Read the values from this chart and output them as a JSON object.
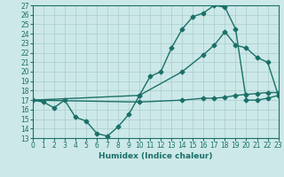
{
  "xlabel": "Humidex (Indice chaleur)",
  "xlim": [
    0,
    23
  ],
  "ylim": [
    13,
    27
  ],
  "xticks": [
    0,
    1,
    2,
    3,
    4,
    5,
    6,
    7,
    8,
    9,
    10,
    11,
    12,
    13,
    14,
    15,
    16,
    17,
    18,
    19,
    20,
    21,
    22,
    23
  ],
  "yticks": [
    13,
    14,
    15,
    16,
    17,
    18,
    19,
    20,
    21,
    22,
    23,
    24,
    25,
    26,
    27
  ],
  "bg_color": "#cce8e8",
  "grid_color": "#aacccc",
  "line_color": "#1a7068",
  "curve1_x": [
    0,
    1,
    2,
    3,
    4,
    5,
    6,
    7,
    8,
    9,
    10,
    11,
    12,
    13,
    14,
    15,
    16,
    17,
    18,
    19,
    20,
    21,
    22,
    23
  ],
  "curve1_y": [
    17.0,
    16.8,
    16.2,
    17.0,
    15.2,
    14.8,
    13.5,
    13.2,
    14.2,
    15.5,
    17.5,
    19.5,
    20.0,
    22.5,
    24.5,
    25.8,
    26.2,
    27.0,
    26.8,
    24.5,
    17.0,
    17.0,
    17.2,
    17.5
  ],
  "curve2_x": [
    0,
    10,
    14,
    16,
    17,
    18,
    19,
    20,
    21,
    22,
    23
  ],
  "curve2_y": [
    17.0,
    17.5,
    20.0,
    21.8,
    22.8,
    24.2,
    22.8,
    22.5,
    21.5,
    21.0,
    17.5
  ],
  "curve3_x": [
    0,
    10,
    14,
    16,
    17,
    18,
    19,
    20,
    21,
    22,
    23
  ],
  "curve3_y": [
    17.0,
    16.8,
    17.0,
    17.2,
    17.2,
    17.3,
    17.5,
    17.6,
    17.7,
    17.8,
    17.8
  ],
  "marker": "D",
  "markersize": 2.5,
  "linewidth": 1.0,
  "tick_fontsize": 5.5,
  "label_fontsize": 6.5
}
